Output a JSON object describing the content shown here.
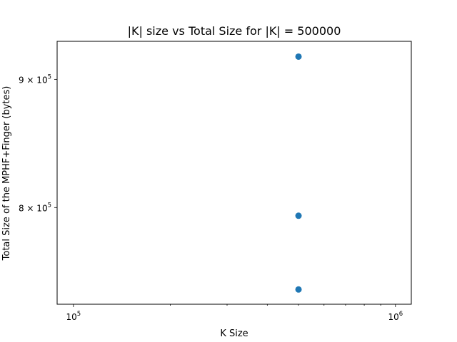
{
  "chart_data": {
    "type": "scatter",
    "title": "|K| size vs Total Size for |K| = 500000",
    "xlabel": "K Size",
    "ylabel": "Total Size of the MPHF+Finger (bytes)",
    "x_scale": "log",
    "y_scale": "log",
    "xlim": [
      89000,
      1120000
    ],
    "ylim": [
      732000,
      932000
    ],
    "x_major_ticks": [
      {
        "value": 100000,
        "base": "10",
        "exp": "5"
      },
      {
        "value": 1000000,
        "base": "10",
        "exp": "6"
      }
    ],
    "x_minor_ticks": [
      200000,
      300000,
      400000,
      500000,
      600000,
      700000,
      800000,
      900000
    ],
    "y_major_ticks": [
      {
        "value": 800000,
        "mantissa": "8",
        "exp": "5"
      },
      {
        "value": 900000,
        "mantissa": "9",
        "exp": "5"
      }
    ],
    "grid": false,
    "marker_color": "#1f77b4",
    "points": [
      {
        "x": 500000,
        "y": 919000
      },
      {
        "x": 500000,
        "y": 794000
      },
      {
        "x": 500000,
        "y": 742000
      }
    ]
  }
}
